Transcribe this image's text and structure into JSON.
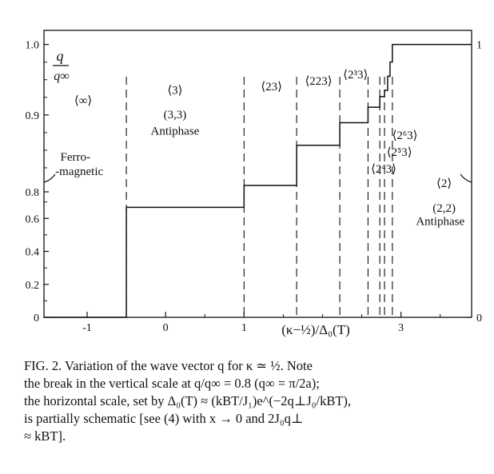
{
  "chart_data": {
    "type": "line",
    "title": "",
    "xlabel": "(κ−½)/Δ₀(T)",
    "ylabel_num": "q",
    "ylabel_den": "q∞",
    "xlim": [
      -1.55,
      3.9
    ],
    "x_ticks": [
      {
        "value": -1,
        "label": "-1"
      },
      {
        "value": 0,
        "label": "0"
      },
      {
        "value": 1,
        "label": "1"
      },
      {
        "value": 3,
        "label": "3"
      }
    ],
    "y_lower_ticks": [
      {
        "value": 0,
        "label": "0"
      },
      {
        "value": 0.2,
        "label": "0.2"
      },
      {
        "value": 0.4,
        "label": "0.4"
      },
      {
        "value": 0.6,
        "label": "0.6"
      },
      {
        "value": 0.8,
        "label": "0.8"
      }
    ],
    "y_upper_ticks": [
      {
        "value": 0.9,
        "label": "0.9"
      },
      {
        "value": 1.0,
        "label": "1.0"
      }
    ],
    "y_break": 0.8,
    "right_axis_labels": [
      {
        "value": 1.0,
        "label": "1"
      },
      {
        "value": 0,
        "label": "0"
      }
    ],
    "steps": [
      {
        "x_start": -1.55,
        "x_end": -0.5,
        "y": 0
      },
      {
        "x_start": -0.5,
        "x_end": 1.0,
        "y": 0.667
      },
      {
        "x_start": 1.0,
        "x_end": 1.67,
        "y": 0.8
      },
      {
        "x_start": 1.67,
        "x_end": 2.22,
        "y": 0.857
      },
      {
        "x_start": 2.22,
        "x_end": 2.58,
        "y": 0.889
      },
      {
        "x_start": 2.58,
        "x_end": 2.73,
        "y": 0.911
      },
      {
        "x_start": 2.73,
        "x_end": 2.79,
        "y": 0.926
      },
      {
        "x_start": 2.79,
        "x_end": 2.83,
        "y": 0.935
      },
      {
        "x_start": 2.83,
        "x_end": 2.86,
        "y": 0.955
      },
      {
        "x_start": 2.86,
        "x_end": 2.89,
        "y": 0.975
      },
      {
        "x_start": 2.89,
        "x_end": 3.9,
        "y": 1.0
      }
    ],
    "phase_boundaries": [
      -0.5,
      1.0,
      1.67,
      2.22,
      2.58,
      2.73,
      2.79,
      2.89
    ],
    "phase_labels": [
      {
        "text": "⟨∞⟩",
        "x": -1.05,
        "y": 0.915
      },
      {
        "text": "Ferro-",
        "x": -1.15,
        "y": 0.835
      },
      {
        "text": "-magnetic",
        "x": -1.1,
        "y": 0.815
      },
      {
        "text": "⟨3⟩",
        "x": 0.12,
        "y": 0.93
      },
      {
        "text": "(3,3)",
        "x": 0.12,
        "y": 0.895
      },
      {
        "text": "Antiphase",
        "x": 0.12,
        "y": 0.872
      },
      {
        "text": "⟨23⟩",
        "x": 1.35,
        "y": 0.935
      },
      {
        "text": "⟨223⟩",
        "x": 1.95,
        "y": 0.943
      },
      {
        "text": "⟨2³3⟩",
        "x": 2.42,
        "y": 0.952
      },
      {
        "text": "⟨2⁶3⟩",
        "x": 3.05,
        "y": 0.866
      },
      {
        "text": "⟨2⁵3⟩",
        "x": 2.98,
        "y": 0.842
      },
      {
        "text": "⟨2⁴3⟩",
        "x": 2.78,
        "y": 0.818
      },
      {
        "text": "⟨2⟩",
        "x": 3.55,
        "y": 0.79
      },
      {
        "text": "(2,2)",
        "x": 3.55,
        "y": 0.64
      },
      {
        "text": "Antiphase",
        "x": 3.5,
        "y": 0.56
      }
    ],
    "grid": false,
    "legend": "none"
  },
  "caption": {
    "lines": [
      "FIG. 2.  Variation of the wave vector q for κ ≃ ½.  Note",
      "the break in the vertical scale at q/q∞ = 0.8  (q∞ = π/2a);",
      "the horizontal scale, set by Δ₀(T) ≈ (kBT/J₁)e^(−2q⊥J₀/kBT),",
      "is partially schematic [see (4) with x → 0 and 2J₀q⊥",
      "≈ kBT]."
    ]
  }
}
